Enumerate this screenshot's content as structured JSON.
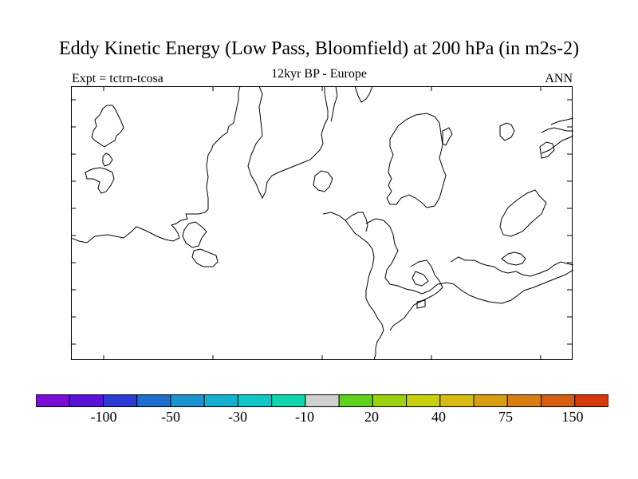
{
  "title": "Eddy Kinetic Energy (Low Pass, Bloomfield) at 200 hPa (in m2s-2)",
  "subtitle_left": "Expt = tctrn-tcosa",
  "subtitle_center": "12kyr BP - Europe",
  "subtitle_right": "ANN",
  "colorbar": {
    "colors": [
      "#7a0ed6",
      "#5a12d8",
      "#2a3ad4",
      "#1e6ed0",
      "#1a94d0",
      "#14b0d0",
      "#10c6c8",
      "#10d6b0",
      "#d0d0d0",
      "#5ed21c",
      "#9ad210",
      "#c8d010",
      "#d6bc10",
      "#d69e10",
      "#d67e10",
      "#d65e10",
      "#d63a0c"
    ],
    "labels": [
      "-100",
      "-50",
      "-30",
      "-10",
      "20",
      "40",
      "75",
      "150"
    ]
  }
}
